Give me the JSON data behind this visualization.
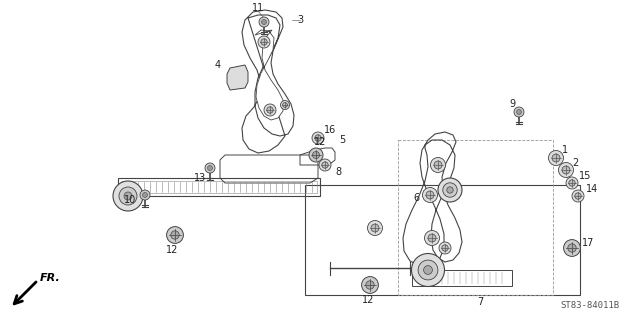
{
  "background_color": "#ffffff",
  "diagram_code": "ST83-84011B",
  "fr_label": "FR.",
  "line_color": "#444444",
  "light_gray": "#aaaaaa",
  "mid_gray": "#888888"
}
